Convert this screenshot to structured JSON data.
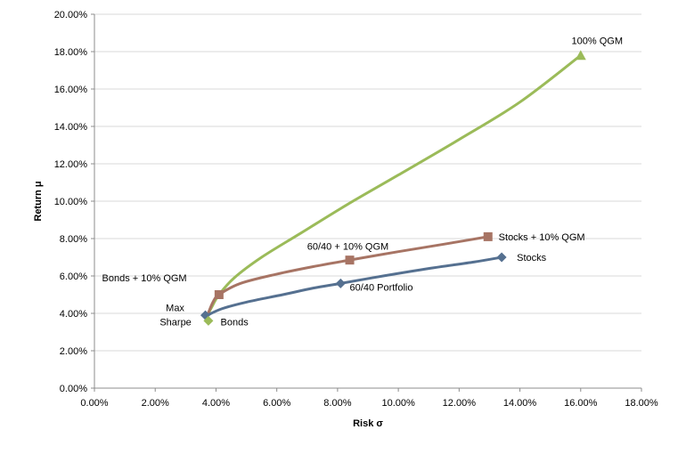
{
  "chart_data": {
    "type": "line",
    "title": "",
    "xlabel": "Risk σ",
    "ylabel": "Return μ",
    "xlim": [
      0,
      18
    ],
    "ylim": [
      0,
      20
    ],
    "x_ticks": [
      "0.00%",
      "2.00%",
      "4.00%",
      "6.00%",
      "8.00%",
      "10.00%",
      "12.00%",
      "14.00%",
      "16.00%",
      "18.00%"
    ],
    "y_ticks": [
      "0.00%",
      "2.00%",
      "4.00%",
      "6.00%",
      "8.00%",
      "10.00%",
      "12.00%",
      "14.00%",
      "16.00%",
      "18.00%",
      "20.00%"
    ],
    "grid": "horizontal",
    "legend": "none",
    "series": [
      {
        "color": "#9bbb59",
        "marker": "triangle",
        "points": [
          {
            "x": 3.72,
            "y": 3.9
          },
          {
            "x": 3.85,
            "y": 4.3
          },
          {
            "x": 4.1,
            "y": 5.0
          },
          {
            "x": 4.6,
            "y": 5.9
          },
          {
            "x": 5.5,
            "y": 7.0
          },
          {
            "x": 6.8,
            "y": 8.3
          },
          {
            "x": 8.3,
            "y": 9.8
          },
          {
            "x": 10.0,
            "y": 11.4
          },
          {
            "x": 12.0,
            "y": 13.3
          },
          {
            "x": 14.0,
            "y": 15.3
          },
          {
            "x": 16.0,
            "y": 17.8
          }
        ],
        "end_marker": {
          "x": 16.0,
          "y": 17.8
        }
      },
      {
        "color": "#a77464",
        "marker": "square",
        "points": [
          {
            "x": 3.72,
            "y": 3.9
          },
          {
            "x": 3.9,
            "y": 4.6
          },
          {
            "x": 4.1,
            "y": 5.0
          },
          {
            "x": 4.8,
            "y": 5.6
          },
          {
            "x": 6.0,
            "y": 6.1
          },
          {
            "x": 7.2,
            "y": 6.5
          },
          {
            "x": 8.4,
            "y": 6.85
          },
          {
            "x": 10.0,
            "y": 7.3
          },
          {
            "x": 11.5,
            "y": 7.7
          },
          {
            "x": 12.95,
            "y": 8.1
          }
        ],
        "markers": [
          {
            "x": 4.1,
            "y": 5.0
          },
          {
            "x": 8.4,
            "y": 6.85
          },
          {
            "x": 12.95,
            "y": 8.1
          }
        ]
      },
      {
        "color": "#557090",
        "marker": "diamond",
        "points": [
          {
            "x": 3.72,
            "y": 3.9
          },
          {
            "x": 4.2,
            "y": 4.25
          },
          {
            "x": 5.0,
            "y": 4.6
          },
          {
            "x": 6.2,
            "y": 5.0
          },
          {
            "x": 7.2,
            "y": 5.35
          },
          {
            "x": 8.1,
            "y": 5.6
          },
          {
            "x": 9.5,
            "y": 6.0
          },
          {
            "x": 11.0,
            "y": 6.4
          },
          {
            "x": 12.5,
            "y": 6.75
          },
          {
            "x": 13.4,
            "y": 7.0
          }
        ],
        "markers": [
          {
            "x": 3.65,
            "y": 3.9
          },
          {
            "x": 8.1,
            "y": 5.6
          },
          {
            "x": 13.4,
            "y": 7.0
          }
        ]
      }
    ],
    "extra_markers": [
      {
        "x": 3.75,
        "y": 3.6,
        "color": "#9bbb59",
        "shape": "diamond"
      }
    ],
    "annotations": [
      {
        "text": "100% QGM",
        "x": 15.7,
        "y": 18.6
      },
      {
        "text": "Stocks + 10% QGM",
        "x": 13.3,
        "y": 8.1
      },
      {
        "text": "60/40 + 10% QGM",
        "x": 7.0,
        "y": 7.6
      },
      {
        "text": "Stocks",
        "x": 13.9,
        "y": 7.0
      },
      {
        "text": "60/40 Portfolio",
        "x": 8.4,
        "y": 5.4
      },
      {
        "text": "Bonds + 10% QGM",
        "x": 0.25,
        "y": 5.9
      },
      {
        "text": "Max",
        "x": 2.35,
        "y": 4.3
      },
      {
        "text": "Sharpe",
        "x": 2.15,
        "y": 3.55
      },
      {
        "text": "Bonds",
        "x": 4.15,
        "y": 3.55
      }
    ]
  }
}
